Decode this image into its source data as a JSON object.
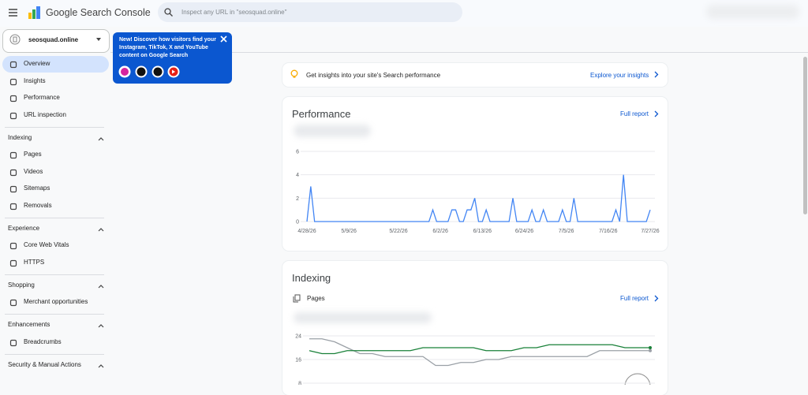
{
  "header": {
    "app_name": "Google Search Console",
    "search_placeholder": "Inspect any URL in \"seosquad.online\""
  },
  "property": "seosquad.online",
  "promo": {
    "text": "New! Discover how visitors find your Instagram, TikTok, X and YouTube content on Google Search"
  },
  "nav": {
    "top": [
      "Overview",
      "Insights",
      "Performance",
      "URL inspection"
    ],
    "sections": [
      {
        "title": "Indexing",
        "items": [
          "Pages",
          "Videos",
          "Sitemaps",
          "Removals"
        ]
      },
      {
        "title": "Experience",
        "items": [
          "Core Web Vitals",
          "HTTPS"
        ]
      },
      {
        "title": "Shopping",
        "items": [
          "Merchant opportunities"
        ]
      },
      {
        "title": "Enhancements",
        "items": [
          "Breadcrumbs"
        ]
      },
      {
        "title": "Security & Manual Actions"
      }
    ]
  },
  "insights": {
    "text": "Get insights into your site's Search performance",
    "link": "Explore your insights"
  },
  "performance": {
    "title": "Performance",
    "link": "Full report",
    "chart": {
      "type": "line",
      "color": "#4285f4",
      "ylim": [
        0,
        6
      ],
      "yticks": [
        0,
        2,
        4,
        6
      ],
      "grid": true,
      "categories": [
        "4/28/26",
        null,
        null,
        null,
        null,
        null,
        null,
        null,
        null,
        null,
        null,
        "5/9/26",
        null,
        null,
        null,
        null,
        null,
        null,
        null,
        null,
        null,
        null,
        null,
        null,
        "5/22/26",
        null,
        null,
        null,
        null,
        null,
        null,
        null,
        null,
        null,
        null,
        "6/2/26",
        null,
        null,
        null,
        null,
        null,
        null,
        null,
        null,
        null,
        null,
        "6/13/26",
        null,
        null,
        null,
        null,
        null,
        null,
        null,
        null,
        null,
        null,
        "6/24/26",
        null,
        null,
        null,
        null,
        null,
        null,
        null,
        null,
        null,
        null,
        "7/5/26",
        null,
        null,
        null,
        null,
        null,
        null,
        null,
        null,
        null,
        null,
        "7/16/26",
        null,
        null,
        null,
        null,
        null,
        null,
        null,
        null,
        null,
        null,
        "7/27/26"
      ],
      "values": [
        0,
        3,
        0,
        0,
        0,
        0,
        0,
        0,
        0,
        0,
        0,
        0,
        0,
        0,
        0,
        0,
        0,
        0,
        0,
        0,
        0,
        0,
        0,
        0,
        0,
        0,
        0,
        0,
        0,
        0,
        0,
        0,
        0,
        1,
        0,
        0,
        0,
        0,
        1,
        1,
        0,
        0,
        1,
        1,
        2,
        0,
        0,
        1,
        0,
        0,
        0,
        0,
        0,
        0,
        2,
        0,
        0,
        0,
        0,
        1,
        0,
        0,
        1,
        0,
        0,
        0,
        0,
        1,
        0,
        0,
        2,
        0,
        0,
        0,
        0,
        0,
        0,
        0,
        0,
        0,
        0,
        1,
        0,
        4,
        0,
        0,
        0,
        0,
        0,
        0,
        1
      ]
    }
  },
  "indexing": {
    "title": "Indexing",
    "subtitle": "Pages",
    "link": "Full report",
    "chart": {
      "type": "line",
      "ylim": [
        8,
        26
      ],
      "yticks": [
        8,
        16,
        24
      ],
      "grid": true,
      "series": [
        {
          "color": "#9aa0a6",
          "values": [
            23,
            23,
            22,
            20,
            18,
            18,
            17,
            17,
            17,
            17,
            14,
            14,
            15,
            15,
            16,
            16,
            17,
            17,
            17,
            17,
            17,
            17,
            17,
            19,
            19,
            19,
            19,
            19
          ]
        },
        {
          "color": "#188038",
          "values": [
            19,
            18,
            18,
            19,
            19,
            19,
            19,
            19,
            19,
            20,
            20,
            20,
            20,
            20,
            19,
            19,
            19,
            20,
            20,
            21,
            21,
            21,
            21,
            21,
            21,
            20,
            20,
            20
          ]
        }
      ]
    }
  }
}
